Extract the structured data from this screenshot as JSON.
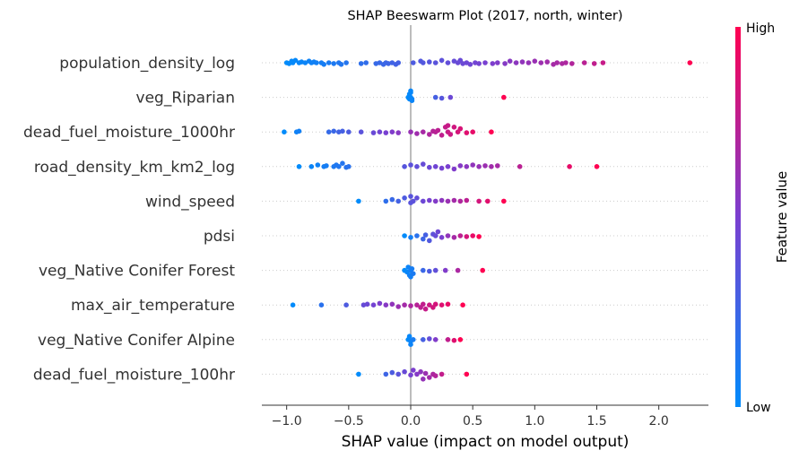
{
  "chart_data": {
    "type": "scatter",
    "title": "SHAP Beeswarm Plot (2017, north, winter)",
    "xlabel": "SHAP value (impact on model output)",
    "xlim": [
      -1.2,
      2.4
    ],
    "xticks": [
      -1.0,
      -0.5,
      0.0,
      0.5,
      1.0,
      1.5,
      2.0
    ],
    "xtick_labels": [
      "−1.0",
      "−0.5",
      "0.0",
      "0.5",
      "1.0",
      "1.5",
      "2.0"
    ],
    "colorbar": {
      "label": "Feature value",
      "high_label": "High",
      "low_label": "Low",
      "low_color": "#008bfb",
      "mid_color": "#7a3fd0",
      "high_color": "#ff0051"
    },
    "grid": false,
    "features": [
      {
        "name": "population_density_log",
        "points": [
          [
            -1.0,
            0.0
          ],
          [
            -0.98,
            0.05
          ],
          [
            -0.96,
            0.1
          ],
          [
            -0.95,
            0.0
          ],
          [
            -0.93,
            0.15
          ],
          [
            -0.9,
            0.0
          ],
          [
            -0.88,
            0.05
          ],
          [
            -0.85,
            0.0
          ],
          [
            -0.82,
            0.1
          ],
          [
            -0.8,
            0.0
          ],
          [
            -0.78,
            0.05
          ],
          [
            -0.76,
            0.0
          ],
          [
            -0.72,
            0.0
          ],
          [
            -0.7,
            0.1
          ],
          [
            -0.66,
            0.0
          ],
          [
            -0.62,
            0.05
          ],
          [
            -0.58,
            0.0
          ],
          [
            -0.56,
            0.1
          ],
          [
            -0.52,
            0.0
          ],
          [
            -0.4,
            0.05
          ],
          [
            -0.36,
            0.0
          ],
          [
            -0.28,
            0.05
          ],
          [
            -0.25,
            0.0
          ],
          [
            -0.22,
            0.1
          ],
          [
            -0.2,
            0.0
          ],
          [
            -0.18,
            0.05
          ],
          [
            -0.15,
            0.0
          ],
          [
            -0.12,
            0.1
          ],
          [
            -0.1,
            0.0
          ],
          [
            0.02,
            0.0
          ],
          [
            0.08,
            0.1
          ],
          [
            0.1,
            0.0
          ],
          [
            0.15,
            0.05
          ],
          [
            0.2,
            0.0
          ],
          [
            0.25,
            0.15
          ],
          [
            0.3,
            0.0
          ],
          [
            0.35,
            0.1
          ],
          [
            0.38,
            0.0
          ],
          [
            0.4,
            0.15
          ],
          [
            0.42,
            0.05
          ],
          [
            0.45,
            0.0
          ],
          [
            0.48,
            0.1
          ],
          [
            0.52,
            0.0
          ],
          [
            0.55,
            0.05
          ],
          [
            0.6,
            0.0
          ],
          [
            0.66,
            0.05
          ],
          [
            0.7,
            0.0
          ],
          [
            0.76,
            0.05
          ],
          [
            0.8,
            0.1
          ],
          [
            0.85,
            0.0
          ],
          [
            0.9,
            0.05
          ],
          [
            0.95,
            0.0
          ],
          [
            1.0,
            0.1
          ],
          [
            1.05,
            0.0
          ],
          [
            1.1,
            0.05
          ],
          [
            1.15,
            0.1
          ],
          [
            1.18,
            0.0
          ],
          [
            1.22,
            0.05
          ],
          [
            1.25,
            0.0
          ],
          [
            1.3,
            0.05
          ],
          [
            1.4,
            0.0
          ],
          [
            1.48,
            0.05
          ],
          [
            1.55,
            0.0
          ],
          [
            2.25,
            0.0
          ]
        ]
      },
      {
        "name": "veg_Riparian ",
        "points": [
          [
            -0.02,
            0.0
          ],
          [
            -0.01,
            0.1
          ],
          [
            -0.01,
            0.2
          ],
          [
            0.0,
            0.0
          ],
          [
            0.0,
            0.3
          ],
          [
            0.01,
            0.1
          ],
          [
            0.0,
            0.4
          ],
          [
            0.01,
            0.2
          ],
          [
            0.2,
            0.0
          ],
          [
            0.25,
            0.05
          ],
          [
            0.32,
            0.0
          ],
          [
            0.75,
            0.0
          ]
        ]
      },
      {
        "name": "dead_fuel_moisture_1000hr",
        "points": [
          [
            -1.02,
            0.0
          ],
          [
            -0.92,
            0.0
          ],
          [
            -0.9,
            0.05
          ],
          [
            -0.66,
            0.0
          ],
          [
            -0.62,
            0.05
          ],
          [
            -0.58,
            0.0
          ],
          [
            -0.55,
            0.05
          ],
          [
            -0.5,
            0.0
          ],
          [
            -0.4,
            0.0
          ],
          [
            -0.3,
            0.05
          ],
          [
            -0.25,
            0.0
          ],
          [
            -0.2,
            0.05
          ],
          [
            -0.15,
            0.0
          ],
          [
            -0.1,
            0.05
          ],
          [
            0.0,
            0.0
          ],
          [
            0.05,
            0.1
          ],
          [
            0.1,
            0.0
          ],
          [
            0.15,
            0.15
          ],
          [
            0.18,
            0.05
          ],
          [
            0.2,
            0.0
          ],
          [
            0.22,
            0.1
          ],
          [
            0.25,
            0.2
          ],
          [
            0.28,
            0.3
          ],
          [
            0.3,
            0.0
          ],
          [
            0.3,
            0.4
          ],
          [
            0.32,
            0.15
          ],
          [
            0.35,
            0.3
          ],
          [
            0.38,
            0.0
          ],
          [
            0.4,
            0.2
          ],
          [
            0.45,
            0.05
          ],
          [
            0.5,
            0.0
          ],
          [
            0.65,
            0.0
          ]
        ]
      },
      {
        "name": "road_density_km_km2_log",
        "points": [
          [
            -0.9,
            0.0
          ],
          [
            -0.8,
            0.0
          ],
          [
            -0.75,
            0.1
          ],
          [
            -0.7,
            0.0
          ],
          [
            -0.68,
            0.05
          ],
          [
            -0.62,
            0.0
          ],
          [
            -0.6,
            0.1
          ],
          [
            -0.58,
            0.0
          ],
          [
            -0.55,
            0.2
          ],
          [
            -0.52,
            0.05
          ],
          [
            -0.5,
            0.0
          ],
          [
            -0.05,
            0.0
          ],
          [
            0.0,
            0.1
          ],
          [
            0.05,
            0.0
          ],
          [
            0.1,
            0.15
          ],
          [
            0.15,
            0.05
          ],
          [
            0.2,
            0.0
          ],
          [
            0.25,
            0.1
          ],
          [
            0.3,
            0.0
          ],
          [
            0.35,
            0.15
          ],
          [
            0.4,
            0.05
          ],
          [
            0.45,
            0.0
          ],
          [
            0.5,
            0.1
          ],
          [
            0.55,
            0.0
          ],
          [
            0.6,
            0.05
          ],
          [
            0.65,
            0.0
          ],
          [
            0.7,
            0.05
          ],
          [
            0.88,
            0.0
          ],
          [
            1.28,
            0.0
          ],
          [
            1.5,
            0.0
          ]
        ]
      },
      {
        "name": "wind_speed",
        "points": [
          [
            -0.42,
            0.0
          ],
          [
            -0.2,
            0.0
          ],
          [
            -0.15,
            0.1
          ],
          [
            -0.1,
            0.0
          ],
          [
            -0.05,
            0.2
          ],
          [
            0.0,
            0.1
          ],
          [
            0.0,
            0.3
          ],
          [
            0.02,
            0.0
          ],
          [
            0.05,
            0.2
          ],
          [
            0.1,
            0.0
          ],
          [
            0.15,
            0.05
          ],
          [
            0.2,
            0.0
          ],
          [
            0.25,
            0.05
          ],
          [
            0.3,
            0.0
          ],
          [
            0.35,
            0.05
          ],
          [
            0.4,
            0.0
          ],
          [
            0.45,
            0.05
          ],
          [
            0.55,
            0.0
          ],
          [
            0.62,
            0.0
          ],
          [
            0.75,
            0.0
          ]
        ]
      },
      {
        "name": "pdsi",
        "points": [
          [
            -0.05,
            0.0
          ],
          [
            0.0,
            0.1
          ],
          [
            0.05,
            0.0
          ],
          [
            0.1,
            0.2
          ],
          [
            0.12,
            0.05
          ],
          [
            0.15,
            0.3
          ],
          [
            0.18,
            0.1
          ],
          [
            0.2,
            0.0
          ],
          [
            0.22,
            0.25
          ],
          [
            0.25,
            0.1
          ],
          [
            0.3,
            0.0
          ],
          [
            0.35,
            0.1
          ],
          [
            0.4,
            0.0
          ],
          [
            0.45,
            0.05
          ],
          [
            0.5,
            0.0
          ],
          [
            0.55,
            0.05
          ]
        ]
      },
      {
        "name": "veg_Native Conifer Forest ",
        "points": [
          [
            -0.05,
            0.0
          ],
          [
            -0.03,
            0.1
          ],
          [
            -0.02,
            0.2
          ],
          [
            -0.01,
            0.3
          ],
          [
            0.0,
            0.0
          ],
          [
            0.0,
            0.4
          ],
          [
            0.01,
            0.1
          ],
          [
            0.02,
            0.2
          ],
          [
            0.1,
            0.0
          ],
          [
            0.15,
            0.05
          ],
          [
            0.2,
            0.0
          ],
          [
            0.28,
            0.0
          ],
          [
            0.38,
            0.0
          ],
          [
            0.58,
            0.0
          ]
        ]
      },
      {
        "name": "max_air_temperature",
        "points": [
          [
            -0.95,
            0.0
          ],
          [
            -0.72,
            0.0
          ],
          [
            -0.52,
            0.0
          ],
          [
            -0.38,
            0.0
          ],
          [
            -0.35,
            0.05
          ],
          [
            -0.3,
            0.0
          ],
          [
            -0.25,
            0.1
          ],
          [
            -0.2,
            0.0
          ],
          [
            -0.15,
            0.05
          ],
          [
            -0.1,
            0.1
          ],
          [
            -0.05,
            0.0
          ],
          [
            0.0,
            0.05
          ],
          [
            0.05,
            0.0
          ],
          [
            0.08,
            0.15
          ],
          [
            0.1,
            0.05
          ],
          [
            0.12,
            0.25
          ],
          [
            0.15,
            0.0
          ],
          [
            0.18,
            0.15
          ],
          [
            0.2,
            0.05
          ],
          [
            0.25,
            0.0
          ],
          [
            0.3,
            0.05
          ],
          [
            0.42,
            0.0
          ]
        ]
      },
      {
        "name": "veg_Native Conifer Alpine ",
        "points": [
          [
            -0.02,
            0.0
          ],
          [
            0.0,
            0.1
          ],
          [
            -0.01,
            0.2
          ],
          [
            0.0,
            0.3
          ],
          [
            0.02,
            0.0
          ],
          [
            0.1,
            0.0
          ],
          [
            0.15,
            0.05
          ],
          [
            0.2,
            0.0
          ],
          [
            0.3,
            0.0
          ],
          [
            0.35,
            0.05
          ],
          [
            0.4,
            0.0
          ]
        ]
      },
      {
        "name": "dead_fuel_moisture_100hr",
        "points": [
          [
            -0.42,
            0.0
          ],
          [
            -0.2,
            0.0
          ],
          [
            -0.15,
            0.1
          ],
          [
            -0.1,
            0.0
          ],
          [
            -0.05,
            0.15
          ],
          [
            0.0,
            0.05
          ],
          [
            0.02,
            0.25
          ],
          [
            0.05,
            0.0
          ],
          [
            0.08,
            0.15
          ],
          [
            0.1,
            0.3
          ],
          [
            0.12,
            0.05
          ],
          [
            0.15,
            0.2
          ],
          [
            0.18,
            0.0
          ],
          [
            0.2,
            0.1
          ],
          [
            0.25,
            0.0
          ],
          [
            0.45,
            0.0
          ]
        ]
      }
    ]
  }
}
